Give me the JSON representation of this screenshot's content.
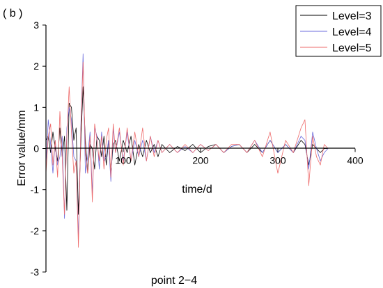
{
  "panel_label": "( b )",
  "caption": "point 2−4",
  "chart_data": {
    "type": "line",
    "xlabel": "time/d",
    "ylabel": "Error value/mm",
    "xlim": [
      0,
      400
    ],
    "ylim": [
      -3,
      3
    ],
    "x_ticks": [
      100,
      200,
      300,
      400
    ],
    "y_ticks": [
      -3,
      -2,
      -1,
      0,
      1,
      2,
      3
    ],
    "legend_position": "top-right",
    "grid": false,
    "series": [
      {
        "name": "Level=3",
        "color": "#000000",
        "x": [
          0,
          3,
          6,
          9,
          12,
          15,
          18,
          21,
          24,
          27,
          30,
          33,
          36,
          39,
          42,
          45,
          48,
          51,
          54,
          57,
          60,
          63,
          66,
          69,
          72,
          75,
          78,
          81,
          84,
          87,
          90,
          95,
          100,
          105,
          110,
          115,
          120,
          125,
          130,
          135,
          140,
          145,
          150,
          160,
          170,
          180,
          190,
          200,
          210,
          220,
          230,
          240,
          250,
          260,
          270,
          280,
          290,
          300,
          310,
          320,
          330,
          335,
          340,
          345,
          350,
          355,
          360,
          365
        ],
        "values": [
          0.2,
          0.3,
          -0.1,
          0.4,
          0.0,
          -0.3,
          0.5,
          -0.2,
          0.3,
          -1.5,
          1.1,
          1.0,
          0.2,
          0.5,
          -1.6,
          0.1,
          1.5,
          0.2,
          -0.6,
          0.1,
          0.0,
          -0.5,
          0.3,
          0.2,
          -0.2,
          0.3,
          -0.4,
          0.2,
          -0.6,
          0.1,
          0.2,
          -0.3,
          0.2,
          -0.1,
          0.3,
          -0.4,
          0.1,
          -0.2,
          0.2,
          -0.1,
          0.1,
          -0.2,
          0.1,
          -0.1,
          0.05,
          -0.05,
          0.1,
          -0.1,
          0.05,
          0.1,
          -0.1,
          0.05,
          0.1,
          -0.1,
          0.1,
          -0.1,
          0.2,
          -0.1,
          0.1,
          -0.1,
          0.2,
          0.1,
          -0.4,
          0.1,
          0.0,
          -0.1,
          0.0,
          0.0
        ]
      },
      {
        "name": "Level=4",
        "color": "#6b6bdc",
        "x": [
          0,
          3,
          6,
          9,
          12,
          15,
          18,
          21,
          24,
          27,
          30,
          33,
          36,
          39,
          42,
          45,
          48,
          51,
          54,
          57,
          60,
          63,
          66,
          69,
          72,
          75,
          78,
          81,
          84,
          87,
          90,
          95,
          100,
          105,
          110,
          115,
          120,
          125,
          130,
          135,
          140,
          145,
          150,
          160,
          170,
          180,
          190,
          200,
          210,
          220,
          230,
          240,
          250,
          260,
          270,
          280,
          290,
          300,
          310,
          320,
          330,
          335,
          340,
          345,
          350,
          355,
          360,
          365
        ],
        "values": [
          -0.4,
          0.7,
          0.1,
          -0.6,
          0.2,
          -0.4,
          -0.2,
          0.3,
          -1.7,
          0.5,
          1.0,
          0.7,
          -0.2,
          -0.3,
          -2.2,
          0.5,
          2.3,
          -0.6,
          -0.2,
          0.4,
          -1.1,
          0.5,
          0.3,
          -0.5,
          0.4,
          -0.3,
          -0.2,
          0.2,
          -0.8,
          0.5,
          -0.1,
          0.4,
          -0.3,
          0.4,
          -0.3,
          0.2,
          -0.2,
          0.2,
          -0.3,
          0.3,
          -0.1,
          0.2,
          -0.1,
          0.1,
          -0.1,
          0.05,
          -0.1,
          0.1,
          -0.05,
          0.1,
          -0.1,
          0.05,
          0.1,
          -0.1,
          0.2,
          -0.1,
          0.2,
          -0.1,
          0.1,
          -0.1,
          0.3,
          0.2,
          -0.5,
          0.4,
          0.0,
          -0.3,
          -0.1,
          0.0
        ]
      },
      {
        "name": "Level=5",
        "color": "#ee6a6a",
        "x": [
          0,
          3,
          6,
          9,
          12,
          15,
          18,
          21,
          24,
          27,
          30,
          33,
          36,
          39,
          42,
          45,
          48,
          51,
          54,
          57,
          60,
          63,
          66,
          69,
          72,
          75,
          78,
          81,
          84,
          87,
          90,
          95,
          100,
          105,
          110,
          115,
          120,
          125,
          130,
          135,
          140,
          145,
          150,
          160,
          170,
          180,
          190,
          200,
          210,
          220,
          230,
          240,
          250,
          260,
          270,
          280,
          290,
          300,
          310,
          320,
          330,
          335,
          340,
          345,
          350,
          355,
          360,
          365
        ],
        "values": [
          -0.6,
          0.3,
          0.6,
          -0.4,
          0.2,
          -0.7,
          0.9,
          -0.2,
          -1.6,
          0.3,
          1.5,
          0.4,
          -0.6,
          -0.3,
          -2.4,
          0.4,
          2.1,
          -0.1,
          -0.6,
          0.3,
          -1.3,
          0.6,
          0.2,
          -0.3,
          0.3,
          -0.5,
          0.2,
          0.5,
          -0.7,
          0.6,
          -0.1,
          0.5,
          -0.4,
          0.5,
          -0.3,
          0.4,
          -0.2,
          0.5,
          -0.3,
          0.3,
          -0.2,
          0.2,
          -0.1,
          0.1,
          -0.1,
          0.1,
          -0.1,
          0.1,
          -0.05,
          0.1,
          -0.1,
          0.1,
          0.1,
          -0.1,
          0.2,
          -0.2,
          0.4,
          -0.6,
          0.2,
          -0.1,
          0.5,
          0.7,
          -0.9,
          0.3,
          -0.2,
          -0.4,
          0.1,
          0.0
        ]
      }
    ]
  }
}
